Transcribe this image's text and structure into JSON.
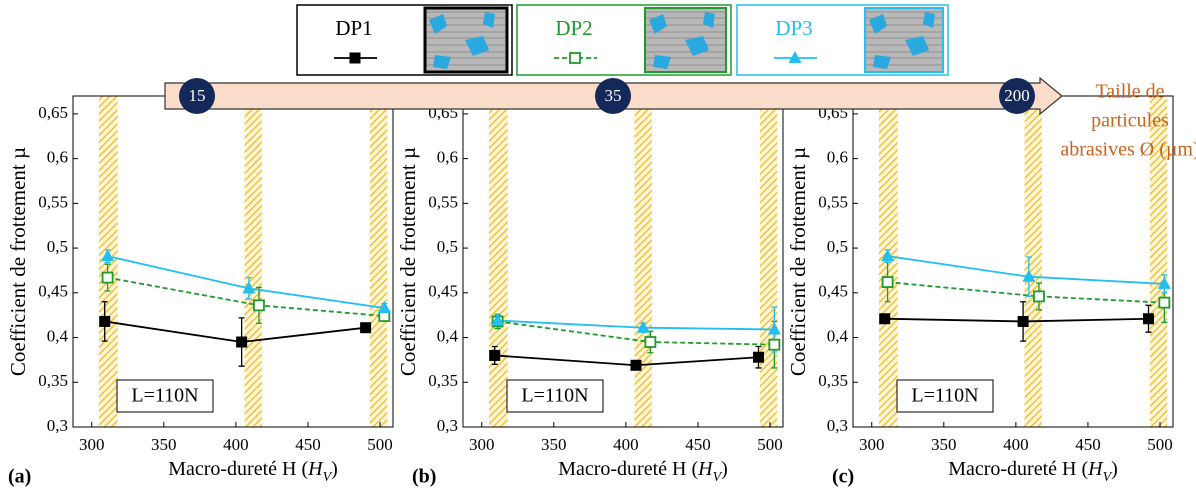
{
  "chart_data": [
    {
      "type": "line",
      "panel_label": "(a)",
      "y_label": "Coefficient de frottement µ",
      "x_label_parts": [
        "Macro-dureté H (",
        "H",
        "V",
        ")"
      ],
      "annotation": "L=110N",
      "xlim": [
        287,
        509
      ],
      "xticks": [
        300,
        350,
        400,
        450,
        500
      ],
      "ylim": [
        0.3,
        0.67
      ],
      "yticks": [
        {
          "value": 0.3,
          "label": "0,3"
        },
        {
          "value": 0.35,
          "label": "0,35"
        },
        {
          "value": 0.4,
          "label": "0,4"
        },
        {
          "value": 0.45,
          "label": "0,45"
        },
        {
          "value": 0.5,
          "label": "0,5"
        },
        {
          "value": 0.55,
          "label": "0,55"
        },
        {
          "value": 0.6,
          "label": "0,6"
        },
        {
          "value": 0.65,
          "label": "0,65"
        }
      ],
      "bands": [
        [
          305,
          318
        ],
        [
          406,
          418
        ],
        [
          493,
          505
        ]
      ],
      "series": [
        {
          "name": "DP1",
          "color": "#000000",
          "marker": "square",
          "dashed": false,
          "x": [
            309,
            404,
            490
          ],
          "values": [
            0.418,
            0.395,
            0.411
          ],
          "errors": [
            0.022,
            0.027,
            0.004
          ]
        },
        {
          "name": "DP2",
          "color": "#1f9a2e",
          "marker": "open-square",
          "dashed": true,
          "x": [
            311,
            416,
            503
          ],
          "values": [
            0.467,
            0.436,
            0.424
          ],
          "errors": [
            0.015,
            0.02,
            0.005
          ]
        },
        {
          "name": "DP3",
          "color": "#22bff0",
          "marker": "triangle",
          "dashed": false,
          "x": [
            311,
            409,
            503
          ],
          "values": [
            0.491,
            0.455,
            0.433
          ],
          "errors": [
            0.007,
            0.012,
            0.005
          ]
        }
      ]
    },
    {
      "type": "line",
      "panel_label": "(b)",
      "y_label": "Coefficient de frottement µ",
      "x_label_parts": [
        "Macro-dureté H (",
        "H",
        "V",
        ")"
      ],
      "annotation": "L=110N",
      "xlim": [
        287,
        509
      ],
      "xticks": [
        300,
        350,
        400,
        450,
        500
      ],
      "ylim": [
        0.3,
        0.67
      ],
      "yticks": [
        {
          "value": 0.3,
          "label": "0,3"
        },
        {
          "value": 0.35,
          "label": "0,35"
        },
        {
          "value": 0.4,
          "label": "0,4"
        },
        {
          "value": 0.45,
          "label": "0,45"
        },
        {
          "value": 0.5,
          "label": "0,5"
        },
        {
          "value": 0.55,
          "label": "0,55"
        },
        {
          "value": 0.6,
          "label": "0,6"
        },
        {
          "value": 0.65,
          "label": "0,65"
        }
      ],
      "bands": [
        [
          305,
          318
        ],
        [
          406,
          418
        ],
        [
          493,
          505
        ]
      ],
      "series": [
        {
          "color": "#000000",
          "marker": "square",
          "dashed": false,
          "x": [
            309,
            407,
            492
          ],
          "values": [
            0.38,
            0.369,
            0.378
          ],
          "errors": [
            0.01,
            0.004,
            0.012
          ]
        },
        {
          "color": "#1f9a2e",
          "marker": "open-square",
          "dashed": true,
          "x": [
            311,
            417,
            503
          ],
          "values": [
            0.418,
            0.395,
            0.392
          ],
          "errors": [
            0.008,
            0.012,
            0.026
          ]
        },
        {
          "color": "#22bff0",
          "marker": "triangle",
          "dashed": false,
          "x": [
            311,
            412,
            503
          ],
          "values": [
            0.419,
            0.411,
            0.409
          ],
          "errors": [
            0.006,
            0.005,
            0.025
          ]
        }
      ]
    },
    {
      "type": "line",
      "panel_label": "(c)",
      "y_label": "Coefficient de frottement µ",
      "x_label_parts": [
        "Macro-dureté H (",
        "H",
        "V",
        ")"
      ],
      "annotation": "L=110N",
      "xlim": [
        287,
        509
      ],
      "xticks": [
        300,
        350,
        400,
        450,
        500
      ],
      "ylim": [
        0.3,
        0.67
      ],
      "yticks": [
        {
          "value": 0.3,
          "label": "0,3"
        },
        {
          "value": 0.35,
          "label": "0,35"
        },
        {
          "value": 0.4,
          "label": "0,4"
        },
        {
          "value": 0.45,
          "label": "0,45"
        },
        {
          "value": 0.5,
          "label": "0,5"
        },
        {
          "value": 0.55,
          "label": "0,55"
        },
        {
          "value": 0.6,
          "label": "0,6"
        },
        {
          "value": 0.65,
          "label": "0,65"
        }
      ],
      "bands": [
        [
          305,
          318
        ],
        [
          406,
          418
        ],
        [
          493,
          505
        ]
      ],
      "series": [
        {
          "color": "#000000",
          "marker": "square",
          "dashed": false,
          "x": [
            309,
            405,
            492
          ],
          "values": [
            0.421,
            0.418,
            0.421
          ],
          "errors": [
            0.005,
            0.022,
            0.015
          ]
        },
        {
          "color": "#1f9a2e",
          "marker": "open-square",
          "dashed": true,
          "x": [
            311,
            416,
            503
          ],
          "values": [
            0.462,
            0.446,
            0.439
          ],
          "errors": [
            0.022,
            0.015,
            0.022
          ]
        },
        {
          "color": "#22bff0",
          "marker": "triangle",
          "dashed": false,
          "x": [
            311,
            409,
            503
          ],
          "values": [
            0.491,
            0.468,
            0.46
          ],
          "errors": [
            0.007,
            0.022,
            0.01
          ]
        }
      ]
    }
  ],
  "particle_size_arrow": {
    "sizes": [
      15,
      35,
      200
    ],
    "label_lines": [
      "Taille de",
      "particules",
      "abrasives Ø (µm)"
    ]
  }
}
